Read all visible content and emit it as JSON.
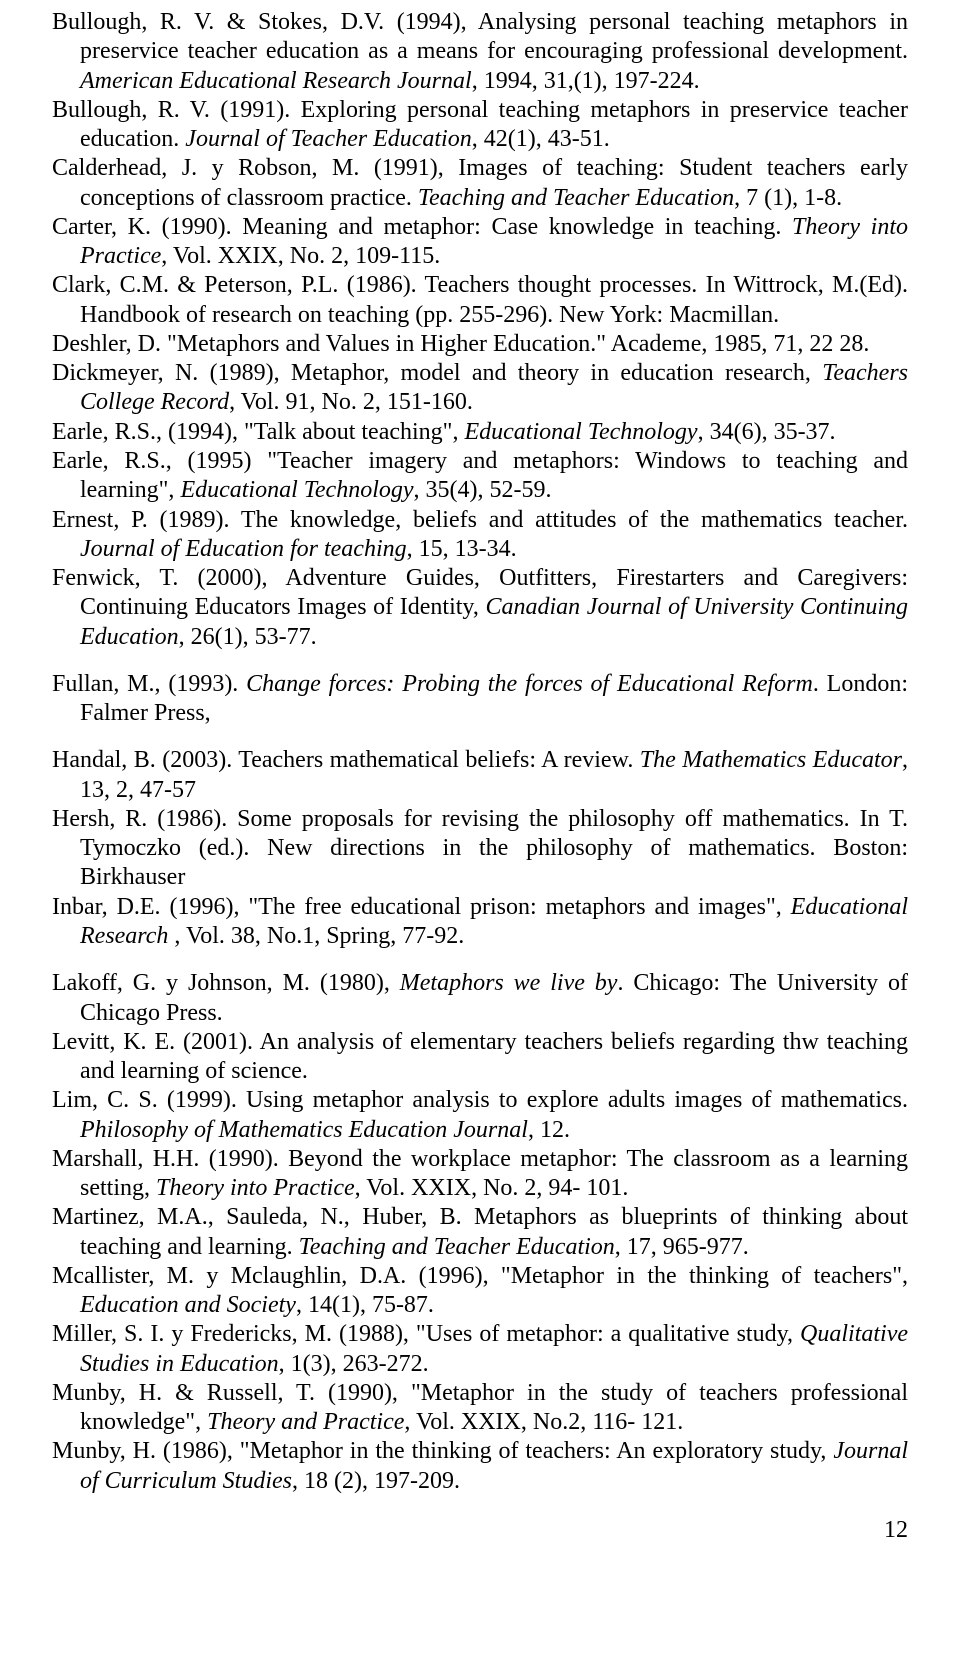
{
  "pageNumber": "12",
  "refs": [
    {
      "parts": [
        {
          "t": "Bullough, R. V. & Stokes, D.V. (1994), Analysing personal teaching metaphors in preservice teacher education as a means for encouraging professional development. "
        },
        {
          "t": "American Educational Research Journal",
          "i": true
        },
        {
          "t": ", 1994, 31,(1), 197-224."
        }
      ]
    },
    {
      "parts": [
        {
          "t": "Bullough, R. V. (1991). Exploring personal teaching metaphors in preservice teacher education. "
        },
        {
          "t": "Journal of Teacher Education",
          "i": true
        },
        {
          "t": ", 42(1), 43-51."
        }
      ]
    },
    {
      "parts": [
        {
          "t": "Calderhead, J. y Robson, M. (1991), Images of teaching: Student teachers early conceptions of classroom practice. "
        },
        {
          "t": "Teaching and Teacher Education",
          "i": true
        },
        {
          "t": ", 7 (1), 1-8."
        }
      ]
    },
    {
      "parts": [
        {
          "t": "Carter, K. (1990). Meaning and metaphor: Case knowledge in teaching. "
        },
        {
          "t": "Theory into Practice",
          "i": true
        },
        {
          "t": ", Vol. XXIX, No. 2, 109-115."
        }
      ]
    },
    {
      "parts": [
        {
          "t": "Clark, C.M. & Peterson, P.L. (1986). Teachers thought processes. In Wittrock, M.(Ed). Handbook of research on teaching (pp. 255-296). New York: Macmillan."
        }
      ]
    },
    {
      "parts": [
        {
          "t": "Deshler, D. \"Metaphors and Values in Higher Education.\" Academe, 1985, 71, 22 28."
        }
      ]
    },
    {
      "parts": [
        {
          "t": "Dickmeyer, N. (1989), Metaphor, model and theory in education research, "
        },
        {
          "t": "Teachers College Record",
          "i": true
        },
        {
          "t": ", Vol. 91, No. 2, 151-160."
        }
      ]
    },
    {
      "parts": [
        {
          "t": "Earle, R.S., (1994), \"Talk about teaching\", "
        },
        {
          "t": "Educational Technology",
          "i": true
        },
        {
          "t": ", 34(6), 35-37."
        }
      ]
    },
    {
      "parts": [
        {
          "t": "Earle, R.S., (1995) \"Teacher imagery and metaphors: Windows to teaching and learning\", "
        },
        {
          "t": "Educational Technology",
          "i": true
        },
        {
          "t": ", 35(4), 52-59."
        }
      ]
    },
    {
      "parts": [
        {
          "t": "Ernest, P. (1989). The knowledge, beliefs and attitudes of the mathematics teacher. "
        },
        {
          "t": "Journal of Education for teaching",
          "i": true
        },
        {
          "t": ",  15, 13-34."
        }
      ]
    },
    {
      "parts": [
        {
          "t": "Fenwick, T. (2000), Adventure Guides, Outfitters, Firestarters and Caregivers: Continuing Educators Images of Identity, "
        },
        {
          "t": "Canadian Journal of University Continuing Education",
          "i": true
        },
        {
          "t": ", 26(1), 53-77."
        }
      ]
    },
    {
      "gap": true,
      "parts": [
        {
          "t": "Fullan, M., (1993). "
        },
        {
          "t": "Change forces: Probing the forces of Educational Reform",
          "i": true
        },
        {
          "t": ". London: Falmer Press,"
        }
      ]
    },
    {
      "gap": true,
      "parts": [
        {
          "t": "Handal, B. (2003). Teachers mathematical beliefs: A review. "
        },
        {
          "t": "The Mathematics Educator",
          "i": true
        },
        {
          "t": ", 13, 2, 47-57"
        }
      ]
    },
    {
      "parts": [
        {
          "t": "Hersh, R. (1986). Some proposals for revising the philosophy off mathematics. In T. Tymoczko (ed.). New directions in the philosophy of mathematics. Boston: Birkhauser"
        }
      ]
    },
    {
      "parts": [
        {
          "t": "Inbar, D.E. (1996), \"The free educational prison: metaphors and images\", "
        },
        {
          "t": "Educational Research ",
          "i": true
        },
        {
          "t": ", Vol. 38, No.1, Spring, 77-92."
        }
      ]
    },
    {
      "gap": true,
      "parts": [
        {
          "t": "Lakoff, G. y Johnson, M. (1980), "
        },
        {
          "t": "Metaphors we live by",
          "i": true
        },
        {
          "t": ". Chicago: The University  of Chicago Press."
        }
      ]
    },
    {
      "parts": [
        {
          "t": "Levitt, K. E. (2001). An analysis of elementary teachers beliefs regarding thw teaching and learning of science."
        }
      ]
    },
    {
      "parts": [
        {
          "t": "Lim, C. S. (1999). Using metaphor analysis to explore adults images of mathematics. "
        },
        {
          "t": "Philosophy of Mathematics Education Journal",
          "i": true
        },
        {
          "t": ", 12."
        }
      ]
    },
    {
      "parts": [
        {
          "t": "Marshall, H.H. (1990). Beyond the workplace metaphor: The classroom as a learning setting, "
        },
        {
          "t": "Theory into Practice",
          "i": true
        },
        {
          "t": ", Vol. XXIX, No. 2, 94- 101."
        }
      ]
    },
    {
      "parts": [
        {
          "t": "Martinez, M.A., Sauleda, N., Huber, B. Metaphors as blueprints of thinking about teaching and learning. "
        },
        {
          "t": "Teaching and Teacher Education",
          "i": true
        },
        {
          "t": ", 17, 965-977."
        }
      ]
    },
    {
      "parts": [
        {
          "t": "Mcallister, M. y Mclaughlin, D.A. (1996), \"Metaphor in the thinking of teachers\", "
        },
        {
          "t": "Education and Society",
          "i": true
        },
        {
          "t": ", 14(1), 75-87."
        }
      ]
    },
    {
      "parts": [
        {
          "t": "Miller, S. I.  y Fredericks, M. (1988), \"Uses of metaphor: a qualitative study, "
        },
        {
          "t": "Qualitative Studies in Education",
          "i": true
        },
        {
          "t": ", 1(3), 263-272."
        }
      ]
    },
    {
      "parts": [
        {
          "t": "Munby, H. & Russell, T. (1990), \"Metaphor in the study of teachers professional knowledge\", "
        },
        {
          "t": "Theory and Practice",
          "i": true
        },
        {
          "t": ", Vol. XXIX, No.2, 116- 121."
        }
      ]
    },
    {
      "parts": [
        {
          "t": "Munby, H. (1986), \"Metaphor in the thinking of teachers: An exploratory study, "
        },
        {
          "t": "Journal of Curriculum Studies",
          "i": true
        },
        {
          "t": ", 18 (2), 197-209."
        }
      ]
    }
  ]
}
